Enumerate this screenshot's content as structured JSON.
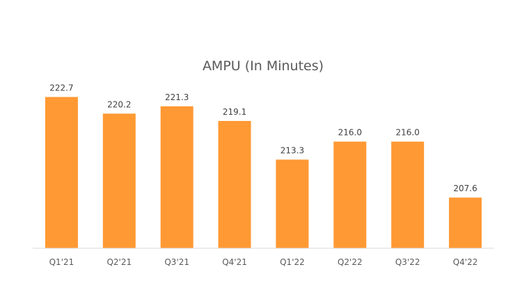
{
  "chart_data": {
    "type": "bar",
    "title": "AMPU (In Minutes)",
    "categories": [
      "Q1'21",
      "Q2'21",
      "Q3'21",
      "Q4'21",
      "Q1'22",
      "Q2'22",
      "Q3'22",
      "Q4'22"
    ],
    "values": [
      222.7,
      220.2,
      221.3,
      219.1,
      213.3,
      216.0,
      216.0,
      207.6
    ],
    "value_labels": [
      "222.7",
      "220.2",
      "221.3",
      "219.1",
      "213.3",
      "216.0",
      "216.0",
      "207.6"
    ],
    "xlabel": "",
    "ylabel": "",
    "ylim": [
      200,
      224
    ],
    "y_axis_visible": false,
    "grid": false,
    "legend": "none",
    "colors": {
      "bar": "#FF9933",
      "axis": "#D9D9D9",
      "title": "#595959",
      "labels": "#404040"
    }
  }
}
